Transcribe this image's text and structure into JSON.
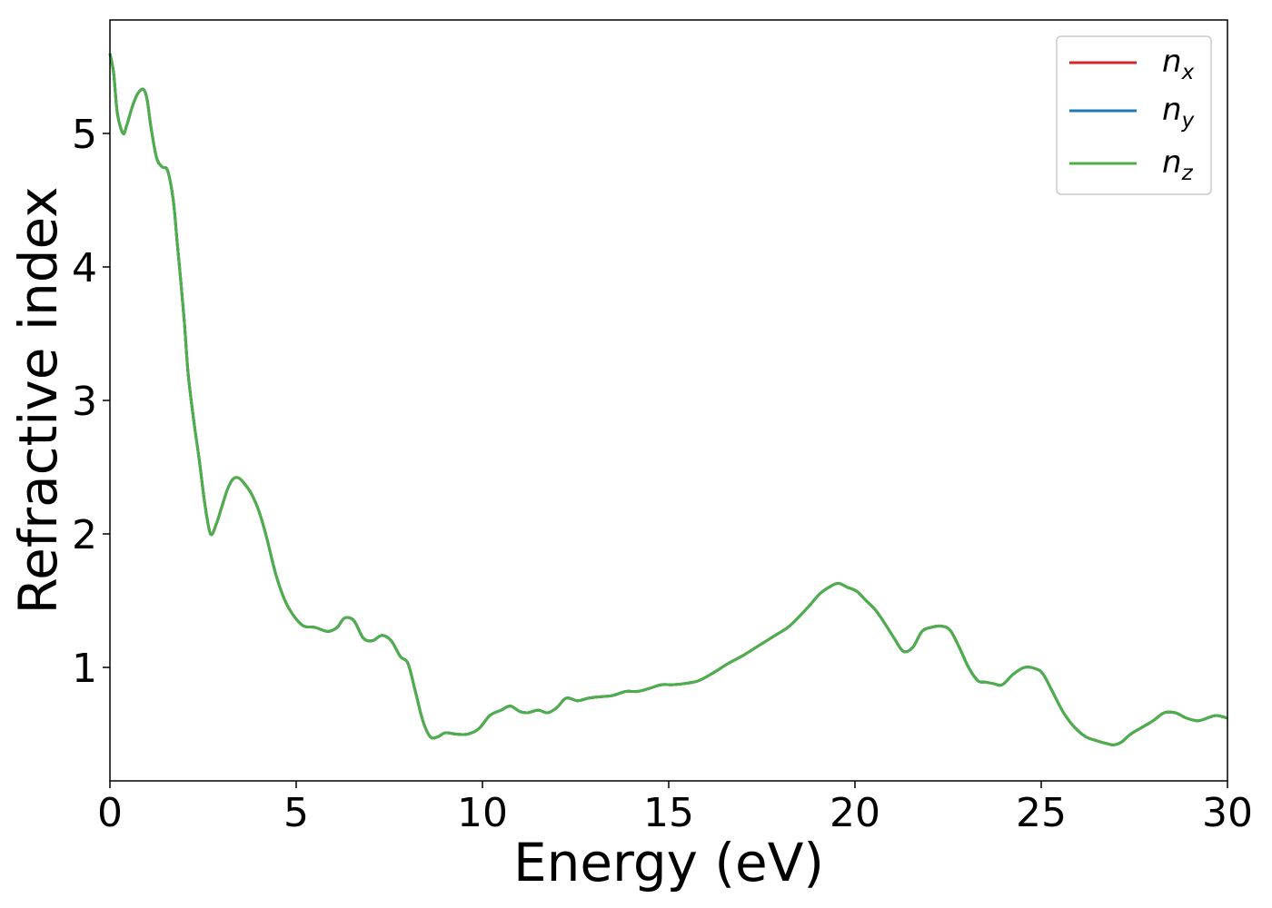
{
  "chart_data": {
    "type": "line",
    "xlabel": "Energy (eV)",
    "ylabel": "Refractive index",
    "xlim": [
      0,
      30
    ],
    "ylim": [
      0.15,
      5.85
    ],
    "x_ticks": [
      "0",
      "5",
      "10",
      "15",
      "20",
      "25",
      "30"
    ],
    "y_ticks": [
      "1",
      "2",
      "3",
      "4",
      "5"
    ],
    "x_tick_values": [
      0,
      5,
      10,
      15,
      20,
      25,
      30
    ],
    "y_tick_values": [
      1,
      2,
      3,
      4,
      5
    ],
    "grid": false,
    "legend_position": "top-right",
    "series": [
      {
        "name": "n",
        "subscript": "x",
        "color": "#d62728"
      },
      {
        "name": "n",
        "subscript": "y",
        "color": "#1f77b4"
      },
      {
        "name": "n",
        "subscript": "z",
        "color": "#4daf4a"
      }
    ],
    "x": [
      0.0,
      0.1,
      0.2,
      0.35,
      0.45,
      0.6,
      0.75,
      0.9,
      1.0,
      1.1,
      1.25,
      1.4,
      1.55,
      1.7,
      1.8,
      1.9,
      2.0,
      2.1,
      2.25,
      2.4,
      2.55,
      2.7,
      2.85,
      3.0,
      3.15,
      3.3,
      3.45,
      3.6,
      3.8,
      4.0,
      4.2,
      4.45,
      4.7,
      4.95,
      5.2,
      5.5,
      5.85,
      6.1,
      6.3,
      6.55,
      6.8,
      7.05,
      7.3,
      7.55,
      7.8,
      8.0,
      8.2,
      8.4,
      8.6,
      8.8,
      9.0,
      9.3,
      9.6,
      9.9,
      10.2,
      10.5,
      10.75,
      11.0,
      11.2,
      11.5,
      11.75,
      12.0,
      12.25,
      12.55,
      12.85,
      13.15,
      13.5,
      13.85,
      14.15,
      14.45,
      14.8,
      15.1,
      15.45,
      15.8,
      16.2,
      16.6,
      17.0,
      17.4,
      17.8,
      18.2,
      18.5,
      18.8,
      19.05,
      19.3,
      19.55,
      19.8,
      20.05,
      20.3,
      20.55,
      20.8,
      21.05,
      21.3,
      21.55,
      21.8,
      22.05,
      22.3,
      22.55,
      22.8,
      23.05,
      23.3,
      23.5,
      23.7,
      23.95,
      24.25,
      24.55,
      24.85,
      25.05,
      25.3,
      25.6,
      25.9,
      26.2,
      26.5,
      26.75,
      26.95,
      27.15,
      27.4,
      27.7,
      28.0,
      28.3,
      28.6,
      28.9,
      29.2,
      29.45,
      29.7,
      30.0
    ],
    "y": [
      5.6,
      5.45,
      5.15,
      5.0,
      5.06,
      5.2,
      5.3,
      5.33,
      5.25,
      5.05,
      4.82,
      4.75,
      4.72,
      4.5,
      4.2,
      3.9,
      3.58,
      3.2,
      2.85,
      2.55,
      2.22,
      2.0,
      2.07,
      2.2,
      2.33,
      2.41,
      2.42,
      2.38,
      2.3,
      2.17,
      1.98,
      1.7,
      1.5,
      1.38,
      1.31,
      1.3,
      1.27,
      1.3,
      1.37,
      1.35,
      1.22,
      1.2,
      1.24,
      1.2,
      1.08,
      1.03,
      0.82,
      0.6,
      0.48,
      0.48,
      0.51,
      0.5,
      0.5,
      0.54,
      0.64,
      0.68,
      0.71,
      0.67,
      0.66,
      0.68,
      0.66,
      0.7,
      0.77,
      0.75,
      0.77,
      0.78,
      0.79,
      0.82,
      0.82,
      0.84,
      0.87,
      0.87,
      0.88,
      0.9,
      0.96,
      1.03,
      1.09,
      1.16,
      1.23,
      1.3,
      1.38,
      1.47,
      1.55,
      1.6,
      1.63,
      1.6,
      1.57,
      1.5,
      1.43,
      1.33,
      1.22,
      1.12,
      1.15,
      1.27,
      1.3,
      1.31,
      1.28,
      1.15,
      1.0,
      0.9,
      0.89,
      0.88,
      0.87,
      0.95,
      1.0,
      0.99,
      0.95,
      0.82,
      0.66,
      0.55,
      0.48,
      0.45,
      0.43,
      0.42,
      0.44,
      0.5,
      0.55,
      0.6,
      0.66,
      0.66,
      0.62,
      0.6,
      0.62,
      0.64,
      0.62
    ]
  }
}
